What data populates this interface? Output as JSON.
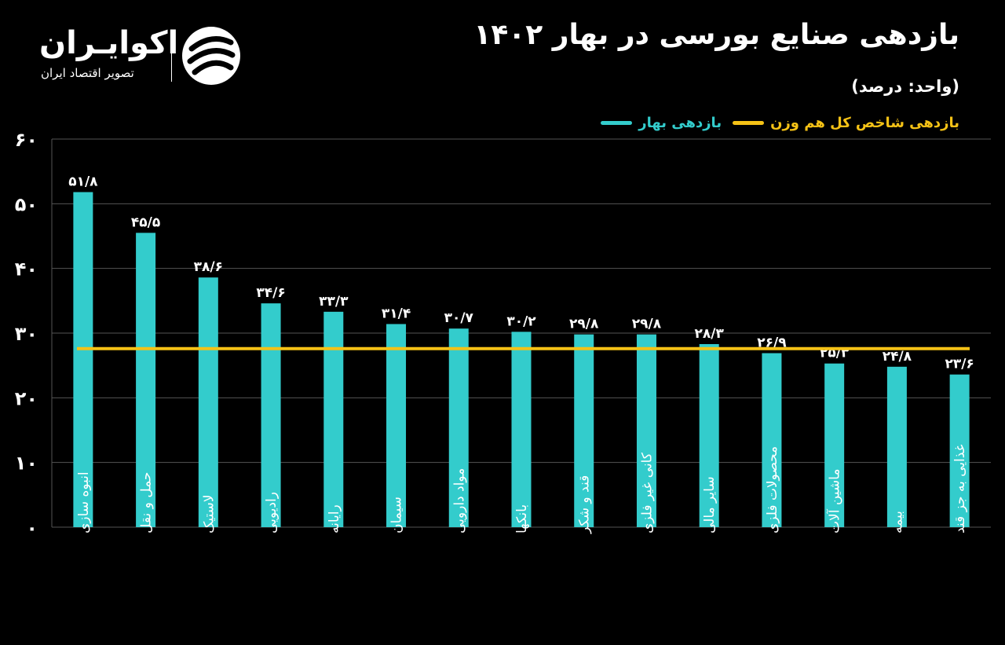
{
  "header": {
    "title": "بازدهی صنایع بورسی در بهار ۱۴۰۲",
    "unit": "(واحد: درصد)"
  },
  "brand": {
    "name": "اکوایـران",
    "tagline": "تصویر اقتصاد ایران",
    "logo_icon": "ekoiran-logo-icon"
  },
  "colors": {
    "bar": "#33CCCC",
    "index_line": "#F5C216",
    "background": "#000000",
    "grid": "#555555",
    "text": "#FFFFFF"
  },
  "legend": {
    "bar_label": "بازدهی بهار",
    "line_label": "بازدهی شاخص کل هم وزن"
  },
  "chart_data": {
    "type": "bar",
    "title": "بازدهی صنایع بورسی در بهار ۱۴۰۲",
    "ylabel": "(واحد: درصد)",
    "xlabel": "",
    "ylim": [
      0,
      60
    ],
    "yticks": [
      0,
      10,
      20,
      30,
      40,
      50,
      60
    ],
    "ytick_labels": [
      "۰",
      "۱۰",
      "۲۰",
      "۳۰",
      "۴۰",
      "۵۰",
      "۶۰"
    ],
    "grid": true,
    "legend_position": "top-right",
    "categories": [
      "انبوه سازی",
      "حمل و نقل",
      "لاستیک",
      "رادیویی",
      "رایانه",
      "سیمان",
      "مواد دارویی",
      "بانکها",
      "قند و شکر",
      "کانی غیر فلزی",
      "سایر مالی",
      "محصولات فلزی",
      "ماشین آلات",
      "بیمه",
      "غذایی به جز قند"
    ],
    "series": [
      {
        "name": "بازدهی بهار",
        "type": "bar",
        "values": [
          51.8,
          45.5,
          38.6,
          34.6,
          33.3,
          31.4,
          30.7,
          30.2,
          29.8,
          29.8,
          28.3,
          26.9,
          25.3,
          24.8,
          23.6
        ],
        "labels": [
          "۵۱/۸",
          "۴۵/۵",
          "۳۸/۶",
          "۳۴/۶",
          "۳۳/۳",
          "۳۱/۴",
          "۳۰/۷",
          "۳۰/۲",
          "۲۹/۸",
          "۲۹/۸",
          "۲۸/۳",
          "۲۶/۹",
          "۲۵/۳",
          "۲۴/۸",
          "۲۳/۶"
        ]
      },
      {
        "name": "بازدهی شاخص کل هم وزن",
        "type": "line",
        "value": 27.6
      }
    ]
  }
}
